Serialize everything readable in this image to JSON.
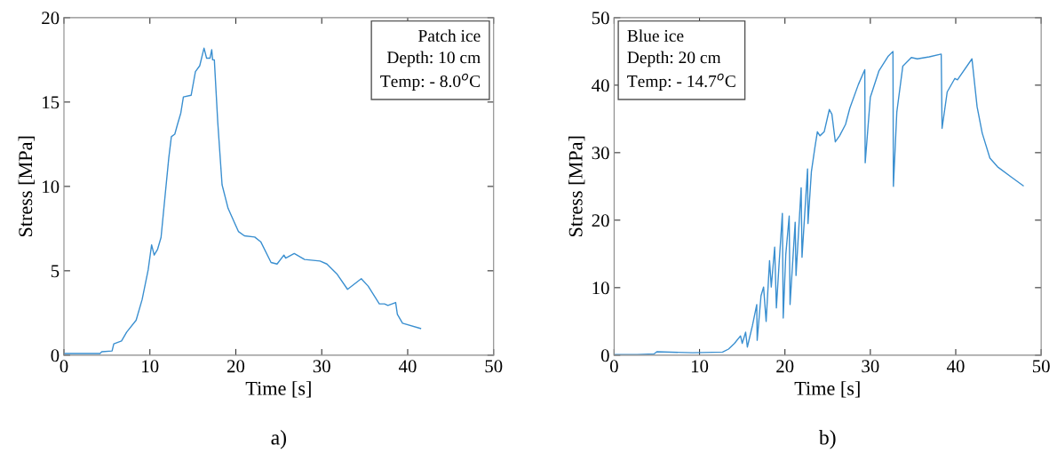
{
  "chart_data": [
    {
      "type": "line",
      "xlabel": "Time [s]",
      "ylabel": "Stress [MPa]",
      "xlim": [
        0,
        50
      ],
      "ylim": [
        0,
        20
      ],
      "xticks": [
        0,
        10,
        20,
        30,
        40,
        50
      ],
      "yticks": [
        0,
        5,
        10,
        15,
        20
      ],
      "grid": false,
      "legend": false,
      "annotations": [
        "Patch ice\nDepth: 10 cm\nTemp: - 8.0$^{o}$C",
        "a)"
      ],
      "series": [
        {
          "color": "#3a8fd0",
          "x": [
            0,
            4.2,
            4.4,
            5.6,
            5.8,
            6.7,
            7.3,
            8.4,
            9.1,
            9.8,
            10.2,
            10.5,
            10.9,
            11.3,
            11.6,
            12.2,
            12.5,
            12.9,
            13.2,
            13.6,
            13.9,
            14.8,
            15.3,
            15.8,
            16.3,
            16.6,
            17.0,
            17.2,
            17.3,
            17.5,
            17.9,
            18.4,
            19.1,
            20.3,
            21.0,
            22.2,
            22.9,
            24.1,
            24.8,
            25.6,
            25.8,
            26.8,
            28.0,
            29.8,
            30.6,
            31.8,
            33.0,
            34.6,
            35.4,
            36.7,
            37.3,
            37.7,
            38.6,
            38.8,
            39.4,
            41.5
          ],
          "values": [
            0.1,
            0.1,
            0.2,
            0.25,
            0.67,
            0.84,
            1.37,
            2.07,
            3.3,
            5.05,
            6.54,
            5.93,
            6.28,
            6.98,
            8.56,
            11.7,
            12.95,
            13.1,
            13.65,
            14.35,
            15.3,
            15.4,
            16.8,
            17.15,
            18.2,
            17.6,
            17.6,
            18.1,
            17.5,
            17.5,
            13.8,
            10.1,
            8.7,
            7.33,
            7.07,
            7.0,
            6.72,
            5.49,
            5.4,
            5.93,
            5.75,
            6.02,
            5.67,
            5.58,
            5.4,
            4.79,
            3.9,
            4.53,
            4.09,
            3.04,
            3.04,
            2.95,
            3.12,
            2.42,
            1.89,
            1.58
          ]
        }
      ]
    },
    {
      "type": "line",
      "xlabel": "Time [s]",
      "ylabel": "Stress [MPa]",
      "xlim": [
        0,
        50
      ],
      "ylim": [
        0,
        50
      ],
      "xticks": [
        0,
        10,
        20,
        30,
        40,
        50
      ],
      "yticks": [
        0,
        10,
        20,
        30,
        40,
        50
      ],
      "grid": false,
      "legend": false,
      "annotations": [
        "Blue ice\nDepth: 20 cm\nTemp: - 14.7$^{o}$C",
        "b)"
      ],
      "series": [
        {
          "color": "#3a8fd0",
          "x": [
            0,
            2.7,
            4.7,
            5.0,
            9.2,
            12.7,
            13.4,
            14.1,
            14.8,
            15.0,
            15.4,
            15.6,
            16.2,
            16.7,
            16.75,
            17.2,
            17.5,
            17.8,
            18.2,
            18.4,
            18.8,
            19.0,
            19.3,
            19.7,
            19.8,
            20.1,
            20.5,
            20.6,
            21.2,
            21.3,
            21.9,
            22.0,
            22.65,
            22.7,
            23.1,
            23.5,
            23.8,
            24.1,
            24.6,
            25.2,
            25.5,
            25.9,
            26.4,
            27.1,
            27.6,
            28.6,
            29.35,
            29.4,
            30.0,
            31.0,
            32.1,
            32.65,
            32.7,
            33.1,
            33.8,
            34.8,
            35.5,
            36.9,
            38.3,
            38.4,
            39.0,
            39.9,
            40.2,
            41.9,
            42.5,
            43.1,
            44.0,
            44.9,
            46.6,
            47.9
          ],
          "values": [
            0.1,
            0.1,
            0.2,
            0.5,
            0.35,
            0.45,
            0.9,
            1.75,
            2.85,
            1.75,
            3.4,
            1.2,
            4.4,
            7.5,
            2.2,
            8.8,
            10.1,
            5.0,
            14.0,
            10.1,
            16.0,
            7.0,
            13.2,
            21.0,
            5.5,
            14.9,
            20.6,
            7.5,
            19.7,
            11.8,
            24.8,
            14.5,
            27.6,
            19.5,
            27.2,
            30.7,
            33.1,
            32.5,
            33.1,
            36.4,
            35.7,
            31.6,
            32.5,
            34.2,
            36.6,
            40.1,
            42.3,
            28.5,
            38.2,
            42.1,
            44.3,
            45.0,
            25.0,
            36.0,
            42.8,
            44.1,
            43.9,
            44.2,
            44.6,
            33.6,
            39.0,
            41.0,
            40.8,
            43.9,
            36.8,
            32.9,
            29.2,
            27.9,
            26.3,
            25.1
          ]
        }
      ]
    }
  ]
}
